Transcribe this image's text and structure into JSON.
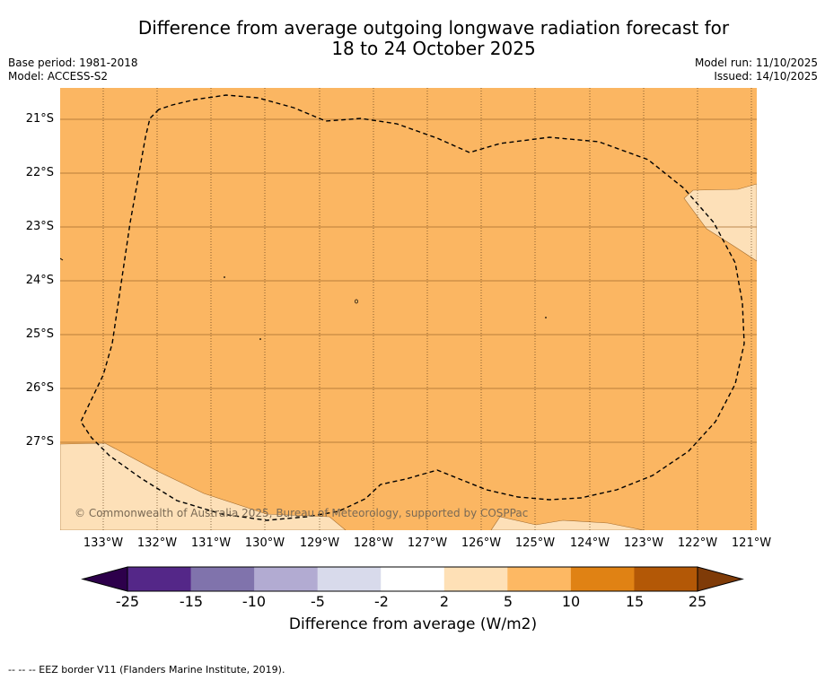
{
  "title_line1": "Difference from average outgoing longwave radiation forecast for",
  "title_line2": "18 to 24 October 2025",
  "base_period": "Base period: 1981-2018",
  "model": "Model: ACCESS-S2",
  "model_run": "Model run: 11/10/2025",
  "issued": "Issued: 14/10/2025",
  "map": {
    "lat_labels": [
      "21°S",
      "22°S",
      "23°S",
      "24°S",
      "25°S",
      "26°S",
      "27°S"
    ],
    "lon_labels": [
      "133°W",
      "132°W",
      "131°W",
      "130°W",
      "129°W",
      "128°W",
      "127°W",
      "126°W",
      "125°W",
      "124°W",
      "123°W",
      "122°W",
      "121°W"
    ],
    "copyright": "© Commonwealth of Australia 2025, Bureau of Meteorology, supported by COSPPac",
    "colors": {
      "band_5_10": "#fbb662",
      "band_2_5": "#fde0b8",
      "gridline": "#a36c2e",
      "eez_border": "#000000"
    }
  },
  "colorbar": {
    "ticks": [
      "-25",
      "-15",
      "-10",
      "-5",
      "-2",
      "2",
      "5",
      "10",
      "15",
      "25"
    ],
    "colors": [
      "#2d004b",
      "#542788",
      "#8073ac",
      "#b2abd2",
      "#d8daeb",
      "#ffffff",
      "#fee0b6",
      "#fdb863",
      "#e08214",
      "#b35806",
      "#7f3b08"
    ],
    "title": "Difference from average (W/m2)"
  },
  "footnote": "-- -- -- EEZ border V11 (Flanders Marine Institute, 2019)."
}
